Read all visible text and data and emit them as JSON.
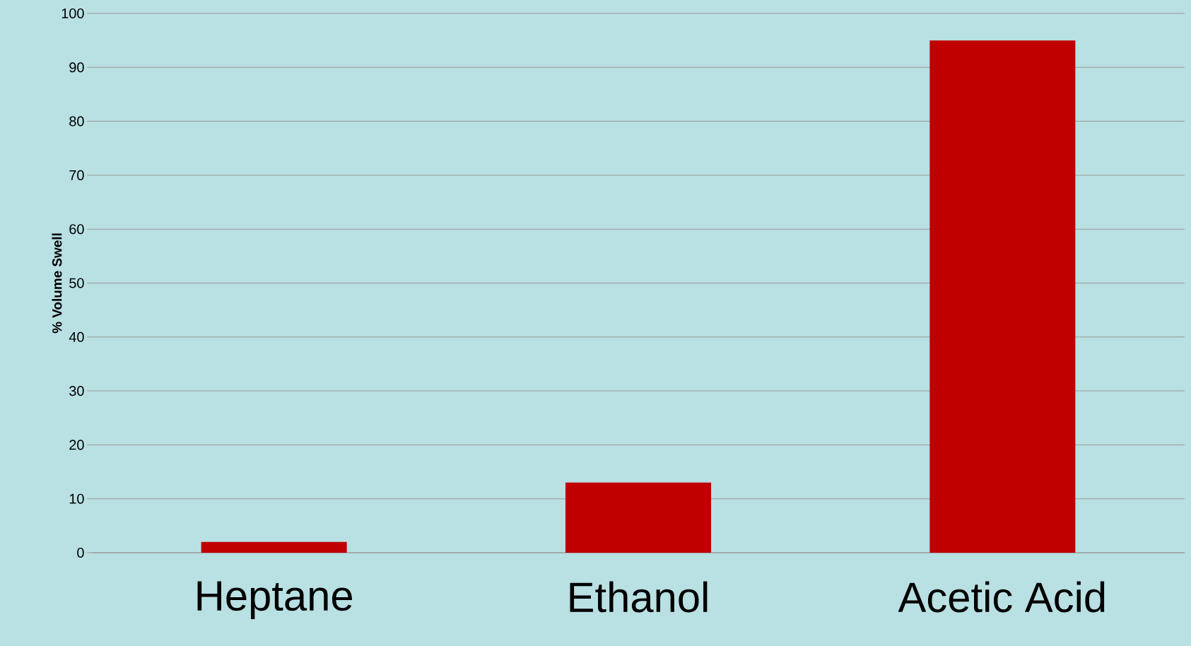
{
  "chart_data": {
    "type": "bar",
    "ylabel": "% Volume Swell",
    "categories": [
      "Heptane",
      "Ethanol",
      "Acetic Acid"
    ],
    "values": [
      2,
      13,
      95
    ],
    "color": "#c00000",
    "ylim": [
      0,
      100
    ],
    "yticks": [
      0,
      10,
      20,
      30,
      40,
      50,
      60,
      70,
      80,
      90,
      100
    ],
    "grid": "y"
  }
}
